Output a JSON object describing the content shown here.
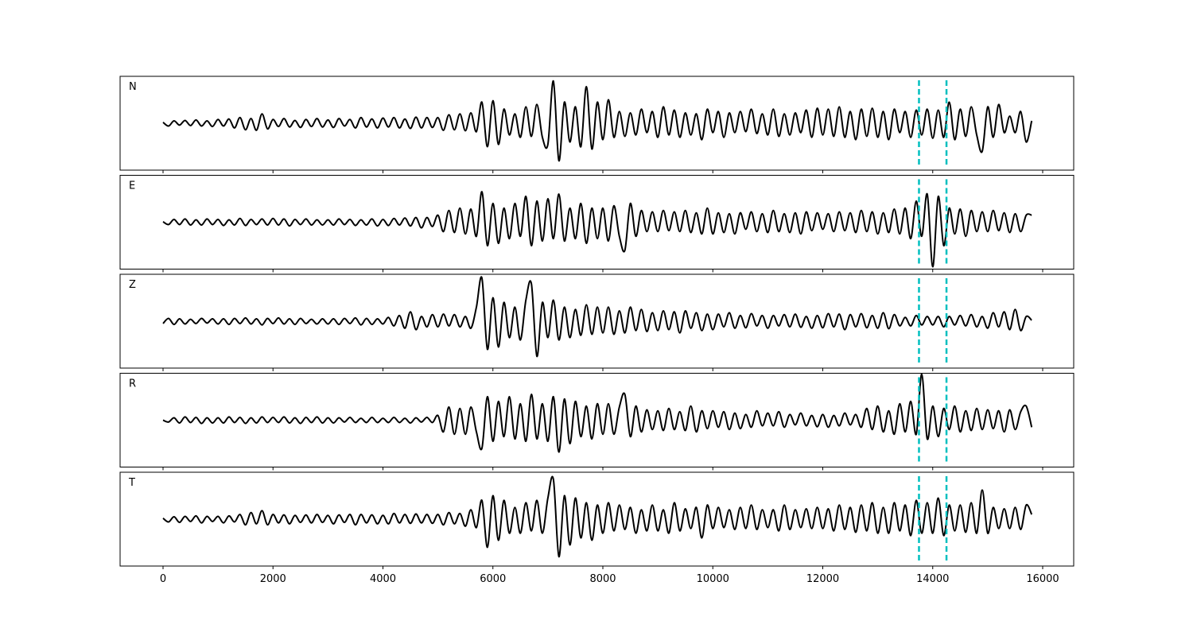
{
  "chart_data": {
    "type": "line",
    "x": [
      0,
      100,
      200,
      300,
      400,
      500,
      600,
      700,
      800,
      900,
      1000,
      1100,
      1200,
      1300,
      1400,
      1500,
      1600,
      1700,
      1800,
      1900,
      2000,
      2100,
      2200,
      2300,
      2400,
      2500,
      2600,
      2700,
      2800,
      2900,
      3000,
      3100,
      3200,
      3300,
      3400,
      3500,
      3600,
      3700,
      3800,
      3900,
      4000,
      4100,
      4200,
      4300,
      4400,
      4500,
      4600,
      4700,
      4800,
      4900,
      5000,
      5100,
      5200,
      5300,
      5400,
      5500,
      5600,
      5700,
      5800,
      5900,
      6000,
      6100,
      6200,
      6300,
      6400,
      6500,
      6600,
      6700,
      6800,
      6900,
      7000,
      7100,
      7200,
      7300,
      7400,
      7500,
      7600,
      7700,
      7800,
      7900,
      8000,
      8100,
      8200,
      8300,
      8400,
      8500,
      8600,
      8700,
      8800,
      8900,
      9000,
      9100,
      9200,
      9300,
      9400,
      9500,
      9600,
      9700,
      9800,
      9900,
      10000,
      10100,
      10200,
      10300,
      10400,
      10500,
      10600,
      10700,
      10800,
      10900,
      11000,
      11100,
      11200,
      11300,
      11400,
      11500,
      11600,
      11700,
      11800,
      11900,
      12000,
      12100,
      12200,
      12300,
      12400,
      12500,
      12600,
      12700,
      12800,
      12900,
      13000,
      13100,
      13200,
      13300,
      13400,
      13500,
      13600,
      13700,
      13800,
      13900,
      14000,
      14100,
      14200,
      14300,
      14400,
      14500,
      14600,
      14700,
      14800,
      14900,
      15000,
      15100,
      15200,
      15300,
      15400,
      15500,
      15600,
      15700,
      15800
    ],
    "xlim": [
      -781,
      16564
    ],
    "xticks": [
      0,
      2000,
      4000,
      6000,
      8000,
      10000,
      12000,
      14000,
      16000
    ],
    "ylim": [
      -1,
      1
    ],
    "color": "#000000",
    "vlines": [
      13750,
      14250
    ],
    "vline_color": "#00bfbf",
    "series": [
      {
        "name": "N",
        "values": [
          0.02,
          -0.06,
          0.05,
          -0.04,
          0.06,
          -0.05,
          0.07,
          -0.06,
          0.05,
          -0.07,
          0.08,
          -0.06,
          0.09,
          -0.1,
          0.12,
          -0.14,
          0.1,
          -0.15,
          0.2,
          -0.12,
          0.08,
          -0.07,
          0.1,
          -0.08,
          0.06,
          -0.09,
          0.08,
          -0.07,
          0.1,
          -0.08,
          0.07,
          -0.09,
          0.1,
          -0.06,
          0.08,
          -0.1,
          0.12,
          -0.08,
          0.09,
          -0.1,
          0.11,
          -0.08,
          0.12,
          -0.1,
          0.09,
          -0.11,
          0.13,
          -0.1,
          0.12,
          -0.09,
          0.12,
          -0.15,
          0.18,
          -0.14,
          0.2,
          -0.16,
          0.22,
          -0.18,
          0.45,
          -0.5,
          0.48,
          -0.45,
          0.3,
          -0.25,
          0.2,
          -0.3,
          0.35,
          -0.28,
          0.4,
          -0.3,
          -0.45,
          0.9,
          -0.8,
          0.45,
          -0.4,
          0.35,
          -0.5,
          0.78,
          -0.55,
          0.45,
          -0.35,
          0.5,
          -0.3,
          0.25,
          -0.28,
          0.22,
          -0.25,
          0.3,
          -0.2,
          0.25,
          -0.3,
          0.35,
          -0.25,
          0.28,
          -0.3,
          0.22,
          -0.25,
          0.2,
          -0.35,
          0.3,
          -0.2,
          0.25,
          -0.3,
          0.22,
          -0.2,
          0.25,
          -0.18,
          0.3,
          -0.22,
          0.2,
          -0.25,
          0.3,
          -0.28,
          0.2,
          -0.25,
          0.22,
          -0.2,
          0.28,
          -0.3,
          0.32,
          -0.25,
          0.3,
          -0.28,
          0.35,
          -0.3,
          0.25,
          -0.35,
          0.3,
          -0.28,
          0.32,
          -0.3,
          0.25,
          -0.35,
          0.3,
          -0.2,
          0.25,
          -0.3,
          0.28,
          -0.25,
          0.3,
          -0.32,
          0.28,
          -0.3,
          0.45,
          -0.35,
          0.3,
          -0.28,
          0.35,
          -0.25,
          -0.6,
          0.35,
          -0.3,
          0.4,
          -0.2,
          0.15,
          -0.2,
          0.25,
          -0.4,
          0.05
        ]
      },
      {
        "name": "E",
        "values": [
          0.01,
          -0.05,
          0.06,
          -0.05,
          0.07,
          -0.06,
          0.05,
          -0.06,
          0.07,
          -0.05,
          0.06,
          -0.07,
          0.05,
          -0.06,
          0.08,
          -0.07,
          0.06,
          -0.05,
          0.07,
          -0.06,
          0.08,
          -0.06,
          0.07,
          -0.08,
          0.06,
          -0.05,
          0.07,
          -0.06,
          0.05,
          -0.06,
          0.05,
          -0.06,
          0.07,
          -0.05,
          0.06,
          -0.07,
          0.05,
          -0.06,
          0.07,
          -0.08,
          0.06,
          -0.07,
          0.08,
          -0.06,
          0.09,
          -0.08,
          0.1,
          -0.12,
          0.1,
          -0.09,
          0.15,
          -0.2,
          0.25,
          -0.22,
          0.3,
          -0.25,
          0.28,
          -0.3,
          0.65,
          -0.5,
          0.4,
          -0.45,
          0.3,
          -0.35,
          0.4,
          -0.3,
          0.55,
          -0.5,
          0.45,
          -0.4,
          0.5,
          -0.35,
          0.6,
          -0.4,
          0.3,
          -0.35,
          0.4,
          -0.45,
          0.3,
          -0.35,
          0.3,
          -0.4,
          0.35,
          -0.3,
          -0.6,
          0.4,
          -0.3,
          0.25,
          -0.2,
          0.22,
          -0.2,
          0.25,
          -0.18,
          0.22,
          -0.2,
          0.25,
          -0.22,
          0.2,
          -0.25,
          0.3,
          -0.25,
          0.2,
          -0.22,
          0.18,
          -0.25,
          0.2,
          -0.15,
          0.22,
          -0.2,
          0.18,
          -0.22,
          0.25,
          -0.2,
          0.18,
          -0.22,
          0.2,
          -0.25,
          0.22,
          -0.18,
          0.2,
          -0.15,
          0.18,
          -0.2,
          0.22,
          -0.18,
          0.2,
          -0.22,
          0.25,
          -0.2,
          0.22,
          -0.25,
          0.2,
          -0.22,
          0.28,
          -0.25,
          0.3,
          -0.35,
          0.45,
          -0.3,
          0.6,
          -0.95,
          0.55,
          -0.5,
          0.3,
          -0.25,
          0.28,
          -0.3,
          0.25,
          -0.2,
          0.22,
          -0.2,
          0.25,
          -0.18,
          0.2,
          -0.22,
          0.18,
          -0.2,
          0.15,
          0.15
        ]
      },
      {
        "name": "Z",
        "values": [
          -0.05,
          0.06,
          -0.07,
          0.05,
          -0.06,
          0.04,
          -0.05,
          0.06,
          -0.04,
          0.05,
          -0.06,
          0.05,
          -0.07,
          0.06,
          -0.05,
          0.07,
          -0.06,
          0.05,
          -0.08,
          0.06,
          -0.05,
          0.07,
          -0.06,
          0.05,
          -0.07,
          0.06,
          -0.05,
          0.04,
          -0.06,
          0.05,
          -0.06,
          0.05,
          -0.07,
          0.06,
          -0.05,
          0.07,
          -0.08,
          0.06,
          -0.07,
          0.05,
          -0.06,
          0.08,
          -0.1,
          0.12,
          -0.15,
          0.2,
          -0.18,
          0.1,
          -0.12,
          0.14,
          -0.12,
          0.15,
          -0.1,
          0.14,
          -0.12,
          0.1,
          -0.15,
          0.3,
          0.92,
          -0.6,
          0.5,
          -0.55,
          0.4,
          -0.35,
          0.3,
          -0.4,
          0.45,
          0.8,
          -0.75,
          0.4,
          -0.35,
          0.45,
          -0.4,
          0.3,
          -0.35,
          0.25,
          -0.3,
          0.35,
          -0.28,
          0.3,
          -0.25,
          0.3,
          -0.28,
          0.22,
          -0.25,
          0.3,
          -0.2,
          0.25,
          -0.22,
          0.18,
          -0.2,
          0.22,
          -0.18,
          0.2,
          -0.25,
          0.22,
          -0.15,
          0.18,
          -0.2,
          0.15,
          -0.18,
          0.15,
          -0.12,
          0.18,
          -0.15,
          0.12,
          -0.14,
          0.16,
          -0.1,
          0.12,
          -0.15,
          0.12,
          -0.1,
          0.14,
          -0.12,
          0.15,
          -0.13,
          0.1,
          -0.15,
          0.12,
          -0.14,
          0.16,
          -0.12,
          0.15,
          -0.18,
          0.14,
          -0.12,
          0.16,
          -0.14,
          0.12,
          -0.15,
          0.18,
          -0.16,
          0.14,
          -0.1,
          0.08,
          -0.1,
          0.12,
          -0.08,
          0.1,
          -0.08,
          0.1,
          -0.12,
          0.1,
          -0.08,
          0.12,
          -0.1,
          0.14,
          -0.12,
          0.1,
          -0.15,
          0.18,
          -0.12,
          0.2,
          -0.18,
          0.25,
          -0.2,
          0.1,
          0.02
        ]
      },
      {
        "name": "R",
        "values": [
          0.0,
          -0.04,
          0.05,
          -0.06,
          0.07,
          -0.05,
          0.06,
          -0.07,
          0.05,
          -0.06,
          0.05,
          -0.06,
          0.07,
          -0.05,
          0.06,
          -0.07,
          0.05,
          -0.06,
          0.07,
          -0.05,
          0.06,
          -0.05,
          0.07,
          -0.06,
          0.05,
          -0.07,
          0.06,
          -0.05,
          0.07,
          -0.06,
          0.05,
          -0.06,
          0.05,
          -0.04,
          0.06,
          -0.05,
          0.04,
          -0.05,
          0.06,
          -0.05,
          0.04,
          -0.05,
          0.06,
          -0.05,
          0.04,
          -0.06,
          0.05,
          -0.04,
          0.06,
          -0.05,
          0.1,
          -0.25,
          0.28,
          -0.3,
          0.25,
          -0.3,
          0.28,
          -0.25,
          -0.6,
          0.5,
          -0.45,
          0.4,
          -0.35,
          0.5,
          -0.4,
          0.35,
          -0.45,
          0.55,
          -0.4,
          0.35,
          -0.45,
          0.5,
          -0.68,
          0.45,
          -0.5,
          0.4,
          -0.35,
          0.3,
          -0.4,
          0.35,
          -0.3,
          0.35,
          -0.3,
          0.28,
          0.55,
          -0.35,
          0.3,
          -0.25,
          0.22,
          -0.2,
          0.2,
          -0.22,
          0.25,
          -0.2,
          0.18,
          -0.22,
          0.3,
          -0.25,
          0.2,
          -0.18,
          0.2,
          -0.15,
          0.18,
          -0.2,
          0.15,
          -0.18,
          0.12,
          -0.15,
          0.2,
          -0.12,
          0.15,
          -0.12,
          0.18,
          -0.15,
          0.12,
          -0.1,
          0.15,
          -0.12,
          0.1,
          -0.14,
          0.12,
          -0.15,
          0.1,
          -0.12,
          0.15,
          -0.1,
          0.12,
          -0.15,
          0.25,
          -0.2,
          0.3,
          -0.25,
          0.2,
          -0.3,
          0.35,
          -0.25,
          0.4,
          -0.3,
          0.98,
          -0.4,
          0.3,
          -0.35,
          0.25,
          -0.2,
          0.3,
          -0.25,
          0.2,
          -0.22,
          0.25,
          -0.2,
          0.22,
          -0.18,
          0.2,
          -0.25,
          0.22,
          -0.2,
          0.18,
          0.3,
          -0.15
        ]
      },
      {
        "name": "T",
        "values": [
          0.02,
          -0.06,
          0.05,
          -0.07,
          0.06,
          -0.05,
          0.07,
          -0.08,
          0.06,
          -0.05,
          0.06,
          -0.08,
          0.07,
          -0.06,
          0.1,
          -0.12,
          0.14,
          -0.1,
          0.18,
          -0.12,
          0.1,
          -0.08,
          0.09,
          -0.1,
          0.08,
          -0.07,
          0.09,
          -0.08,
          0.1,
          -0.07,
          0.08,
          -0.1,
          0.09,
          -0.07,
          0.1,
          -0.12,
          0.1,
          -0.08,
          0.09,
          -0.1,
          0.08,
          -0.1,
          0.12,
          -0.08,
          0.1,
          -0.09,
          0.11,
          -0.08,
          0.1,
          -0.09,
          0.1,
          -0.12,
          0.14,
          -0.1,
          0.12,
          -0.15,
          0.2,
          -0.18,
          0.4,
          -0.6,
          0.5,
          -0.45,
          0.4,
          -0.3,
          0.25,
          -0.3,
          0.35,
          -0.25,
          0.4,
          -0.3,
          0.45,
          0.85,
          -0.8,
          0.5,
          -0.55,
          0.45,
          -0.4,
          0.35,
          -0.45,
          0.3,
          -0.3,
          0.35,
          -0.25,
          0.3,
          -0.22,
          0.25,
          -0.3,
          0.2,
          -0.25,
          0.3,
          -0.25,
          0.2,
          -0.3,
          0.35,
          -0.25,
          0.22,
          -0.2,
          0.25,
          -0.4,
          0.3,
          -0.2,
          0.25,
          -0.18,
          0.2,
          -0.22,
          0.25,
          -0.2,
          0.3,
          -0.22,
          0.2,
          -0.18,
          0.2,
          -0.25,
          0.3,
          -0.22,
          0.2,
          -0.18,
          0.22,
          -0.2,
          0.25,
          -0.2,
          0.22,
          -0.25,
          0.3,
          -0.22,
          0.25,
          -0.28,
          0.3,
          -0.25,
          0.35,
          -0.3,
          0.25,
          -0.3,
          0.35,
          -0.25,
          0.3,
          -0.35,
          0.4,
          -0.3,
          0.35,
          -0.3,
          0.45,
          -0.35,
          0.3,
          -0.25,
          0.3,
          -0.28,
          0.35,
          -0.3,
          0.62,
          -0.3,
          0.25,
          -0.2,
          0.22,
          -0.2,
          0.25,
          -0.22,
          0.3,
          0.1
        ]
      }
    ]
  }
}
